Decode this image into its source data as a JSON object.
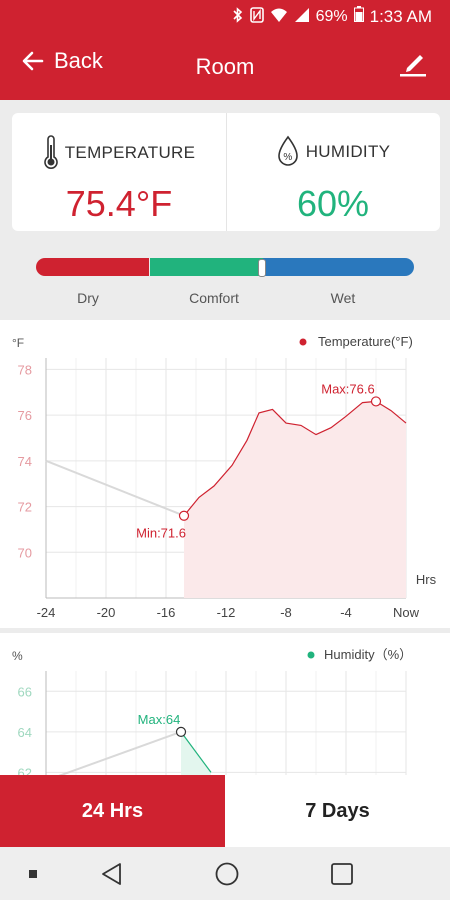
{
  "status_bar": {
    "battery": "69%",
    "time": "1:33 AM"
  },
  "header": {
    "back_label": "Back",
    "title": "Room"
  },
  "metrics": {
    "temperature": {
      "label": "TEMPERATURE",
      "value": "75.4°F",
      "color": "#cf2230"
    },
    "humidity": {
      "label": "HUMIDITY",
      "value": "60%",
      "color": "#21b37d"
    }
  },
  "comfort_scale": {
    "labels": [
      "Dry",
      "Comfort",
      "Wet"
    ],
    "colors": [
      "#cf2230",
      "#21b37d",
      "#2a78bd"
    ],
    "indicator": 0.6
  },
  "chart_data": [
    {
      "type": "line",
      "unit_label": "°F",
      "xlabel": "Hrs",
      "legend": "Temperature(°F)",
      "legend_position": "top-right",
      "grid": true,
      "color": "#cf2230",
      "xlim": [
        -24,
        0
      ],
      "ylim": [
        68,
        78.5
      ],
      "yticks": [
        70,
        72,
        74,
        76,
        78
      ],
      "xticks": [
        {
          "value": -24,
          "label": "-24"
        },
        {
          "value": -20,
          "label": "-20"
        },
        {
          "value": -16,
          "label": "-16"
        },
        {
          "value": -12,
          "label": "-12"
        },
        {
          "value": -8,
          "label": "-8"
        },
        {
          "value": -4,
          "label": "-4"
        },
        {
          "value": 0,
          "label": "Now"
        }
      ],
      "gap_segment": [
        [
          -24,
          74.0
        ],
        [
          -14.8,
          71.6
        ]
      ],
      "x": [
        -14.8,
        -13.8,
        -12.8,
        -11.6,
        -10.6,
        -9.8,
        -8.9,
        -8.0,
        -7.0,
        -6.0,
        -5.0,
        -4.0,
        -2.9,
        -2.0,
        -1.0,
        0
      ],
      "y": [
        71.6,
        72.4,
        72.9,
        73.8,
        74.9,
        76.1,
        76.25,
        75.65,
        75.55,
        75.15,
        75.45,
        75.95,
        76.55,
        76.6,
        76.2,
        75.65
      ],
      "min": {
        "x": -14.8,
        "y": 71.6,
        "label": "Min:71.6"
      },
      "max": {
        "x": -2.0,
        "y": 76.6,
        "label": "Max:76.6"
      }
    },
    {
      "type": "line",
      "unit_label": "%",
      "legend": "Humidity（%）",
      "legend_position": "top-right",
      "grid": true,
      "color": "#21b37d",
      "xlim": [
        -24,
        0
      ],
      "ylim": [
        60,
        67
      ],
      "yticks": [
        62,
        64,
        66
      ],
      "gap_segment": [
        [
          -24,
          61.6
        ],
        [
          -15,
          64.0
        ]
      ],
      "x": [
        -15,
        -13
      ],
      "y": [
        64.0,
        62.0
      ],
      "max": {
        "x": -15,
        "y": 64,
        "label": "Max:64"
      }
    }
  ],
  "tabs": [
    {
      "label": "24 Hrs",
      "active": true
    },
    {
      "label": "7 Days",
      "active": false
    }
  ]
}
